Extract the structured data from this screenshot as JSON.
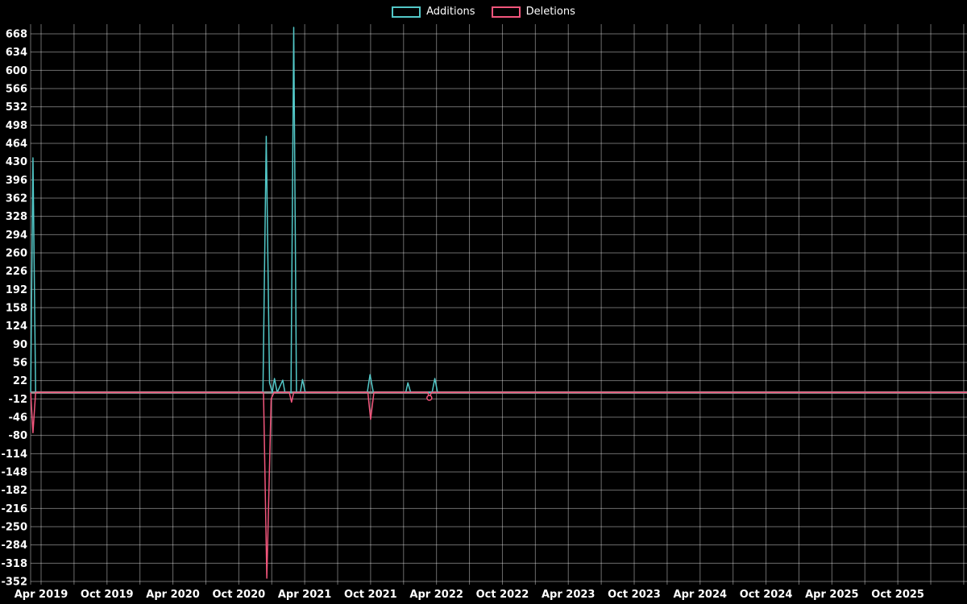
{
  "chart_data": {
    "type": "line",
    "title": "",
    "background": "#000000",
    "text_color": "#ffffff",
    "grid": {
      "color": "rgba(255,255,255,0.42)",
      "v_every_months": 3
    },
    "zero_line": {
      "value": 0,
      "color": "#949494"
    },
    "legend": [
      {
        "label": "Additions",
        "color": "#53c8c8"
      },
      {
        "label": "Deletions",
        "color": "#f2567c"
      }
    ],
    "x_axis": {
      "tick_labels": [
        "Apr 2019",
        "Oct 2019",
        "Apr 2020",
        "Oct 2020",
        "Apr 2021",
        "Oct 2021",
        "Apr 2022",
        "Oct 2022",
        "Apr 2023",
        "Oct 2023",
        "Apr 2024",
        "Oct 2024",
        "Apr 2025",
        "Oct 2025"
      ],
      "tick_months": [
        0,
        6,
        12,
        18,
        24,
        30,
        36,
        42,
        48,
        54,
        60,
        66,
        72,
        78
      ]
    },
    "y_axis": {
      "ticks": [
        668,
        634,
        600,
        566,
        532,
        498,
        464,
        430,
        396,
        362,
        328,
        294,
        260,
        226,
        192,
        158,
        124,
        90,
        56,
        22,
        -12,
        -46,
        -80,
        -114,
        -148,
        -182,
        -216,
        -250,
        -284,
        -318,
        -352
      ],
      "range": [
        -352,
        668
      ]
    },
    "series": [
      {
        "name": "Additions",
        "color": "#53c8c8",
        "points": [
          [
            -0.95,
            0
          ],
          [
            -0.74,
            437
          ],
          [
            -0.5,
            0
          ],
          [
            20.2,
            0
          ],
          [
            20.5,
            477
          ],
          [
            20.8,
            18
          ],
          [
            21.05,
            0
          ],
          [
            21.25,
            26
          ],
          [
            21.5,
            0
          ],
          [
            22.0,
            23
          ],
          [
            22.2,
            0
          ],
          [
            22.75,
            0
          ],
          [
            23.0,
            680
          ],
          [
            23.25,
            0
          ],
          [
            23.6,
            0
          ],
          [
            23.8,
            24
          ],
          [
            24.05,
            0
          ],
          [
            29.7,
            0
          ],
          [
            29.95,
            33
          ],
          [
            30.25,
            0
          ],
          [
            33.2,
            0
          ],
          [
            33.4,
            18
          ],
          [
            33.65,
            0
          ],
          [
            35.6,
            0
          ],
          [
            35.85,
            26
          ],
          [
            36.1,
            0
          ],
          [
            84.5,
            0
          ]
        ]
      },
      {
        "name": "Deletions",
        "color": "#f2567c",
        "points": [
          [
            -0.95,
            0
          ],
          [
            -0.74,
            -75
          ],
          [
            -0.5,
            0
          ],
          [
            20.25,
            0
          ],
          [
            20.55,
            -346
          ],
          [
            20.95,
            -12
          ],
          [
            21.2,
            0
          ],
          [
            22.6,
            0
          ],
          [
            22.8,
            -18
          ],
          [
            23.0,
            0
          ],
          [
            29.75,
            0
          ],
          [
            30.0,
            -50
          ],
          [
            30.3,
            0
          ],
          [
            35.2,
            0
          ],
          [
            35.35,
            -10
          ],
          [
            35.55,
            0
          ],
          [
            84.5,
            0
          ]
        ],
        "markers": [
          [
            35.35,
            -10
          ]
        ]
      }
    ]
  }
}
